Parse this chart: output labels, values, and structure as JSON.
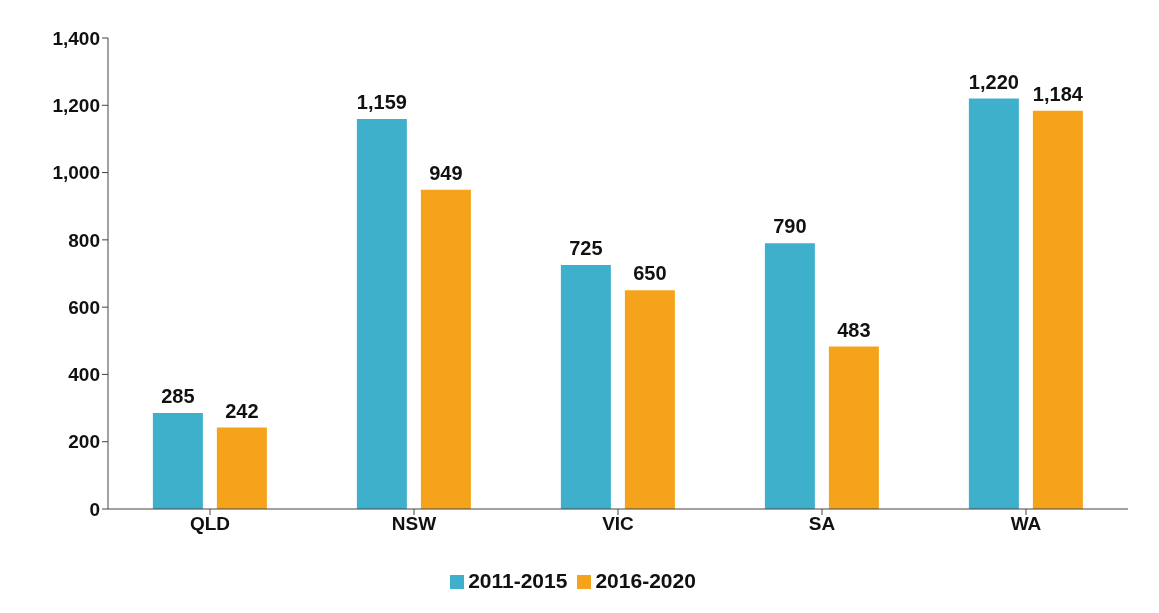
{
  "chart_data": {
    "type": "bar",
    "categories": [
      "QLD",
      "NSW",
      "VIC",
      "SA",
      "WA"
    ],
    "series": [
      {
        "name": "2011-2015",
        "color": "#3fb0cc",
        "values": [
          285,
          1159,
          725,
          790,
          1220
        ],
        "value_labels": [
          "285",
          "1,159",
          "725",
          "790",
          "1,220"
        ]
      },
      {
        "name": "2016-2020",
        "color": "#f5a31a",
        "values": [
          242,
          949,
          650,
          483,
          1184
        ],
        "value_labels": [
          "242",
          "949",
          "650",
          "483",
          "1,184"
        ]
      }
    ],
    "ylim": [
      0,
      1400
    ],
    "yticks": [
      {
        "value": 0,
        "label": "0"
      },
      {
        "value": 200,
        "label": "200"
      },
      {
        "value": 400,
        "label": "400"
      },
      {
        "value": 600,
        "label": "600"
      },
      {
        "value": 800,
        "label": "800"
      },
      {
        "value": 1000,
        "label": "1,000"
      },
      {
        "value": 1200,
        "label": "1,200"
      },
      {
        "value": 1400,
        "label": "1,400"
      }
    ],
    "grid": false,
    "legend": "bottom"
  }
}
